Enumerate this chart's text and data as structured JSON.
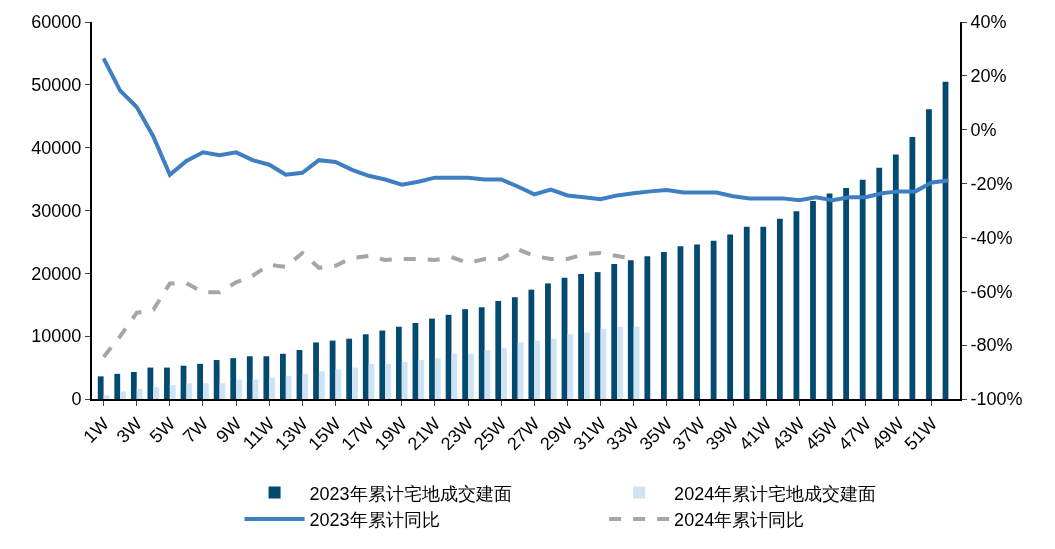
{
  "chart_data": {
    "type": "bar",
    "categories": [
      "1W",
      null,
      "3W",
      null,
      "5W",
      null,
      "7W",
      null,
      "9W",
      null,
      "11W",
      null,
      "13W",
      null,
      "15W",
      null,
      "17W",
      null,
      "19W",
      null,
      "21W",
      null,
      "23W",
      null,
      "25W",
      null,
      "27W",
      null,
      "29W",
      null,
      "31W",
      null,
      "33W",
      null,
      "35W",
      null,
      "37W",
      null,
      "39W",
      null,
      "41W",
      null,
      "43W",
      null,
      "45W",
      null,
      "47W",
      null,
      "49W",
      null,
      "51W",
      null
    ],
    "series": [
      {
        "name": "2023年累计宅地成交建面",
        "color": "#024a70",
        "values": [
          3600,
          4000,
          4300,
          5000,
          5000,
          5300,
          5600,
          6200,
          6500,
          6800,
          6800,
          7200,
          7800,
          9000,
          9300,
          9600,
          10300,
          10900,
          11500,
          12100,
          12800,
          13400,
          14300,
          14600,
          15600,
          16200,
          17400,
          18400,
          19300,
          19900,
          20200,
          21500,
          22100,
          22700,
          23400,
          24300,
          24600,
          25200,
          26200,
          27400,
          27400,
          28700,
          29900,
          31500,
          32700,
          33600,
          34900,
          36800,
          38900,
          41700,
          46100,
          50500
        ]
      },
      {
        "name": "2024年累计宅地成交建面",
        "color": "#cfe3f3",
        "values": [
          600,
          1200,
          1600,
          1900,
          2200,
          2500,
          2500,
          2500,
          3100,
          3100,
          3400,
          3700,
          4000,
          4400,
          4700,
          5000,
          5600,
          5600,
          5900,
          6200,
          6500,
          7200,
          7200,
          7800,
          8100,
          9000,
          9300,
          9600,
          10300,
          10600,
          11200,
          11500,
          11500,
          null,
          null,
          null,
          null,
          null,
          null,
          null,
          null,
          null,
          null,
          null,
          null,
          null,
          null,
          null,
          null,
          null,
          null,
          null
        ]
      },
      {
        "name": "2023年累计同比",
        "type": "line",
        "axis": "y2",
        "color": "#3e7fc1",
        "line_style": "solid",
        "values": [
          26.5,
          14.5,
          8.4,
          -2.5,
          -16.7,
          -11.6,
          -8.4,
          -9.5,
          -8.4,
          -11.3,
          -13,
          -16.7,
          -16,
          -11.3,
          -12,
          -14.9,
          -17.1,
          -18.5,
          -20.4,
          -19.3,
          -17.8,
          -17.8,
          -17.8,
          -18.5,
          -18.5,
          -21.1,
          -24,
          -22.2,
          -24.4,
          -25.1,
          -25.8,
          -24.4,
          -23.6,
          -22.9,
          -22.4,
          -23.3,
          -23.3,
          -23.3,
          -24.7,
          -25.5,
          -25.5,
          -25.5,
          -26.2,
          -25.1,
          -26.2,
          -25.1,
          -25.1,
          -23.6,
          -22.9,
          -22.9,
          -19.6,
          -18.9
        ]
      },
      {
        "name": "2024年累计同比",
        "type": "line",
        "axis": "y2",
        "color": "#a6a6a6",
        "line_style": "dashed",
        "values": [
          -84.4,
          -76.7,
          -68,
          -66.9,
          -57.1,
          -57,
          -60.4,
          -60.4,
          -56.7,
          -54.2,
          -50.2,
          -50.9,
          -45.8,
          -51.3,
          -50.5,
          -47.6,
          -46.9,
          -48.4,
          -48,
          -48,
          -48.4,
          -47.3,
          -49.5,
          -48,
          -48,
          -44.4,
          -46.9,
          -48,
          -48,
          -46.2,
          -45.8,
          -46.9,
          -48,
          null,
          null,
          null,
          null,
          null,
          null,
          null,
          null,
          null,
          null,
          null,
          null,
          null,
          null,
          null,
          null,
          null,
          null,
          null
        ]
      }
    ],
    "ylim": [
      0,
      60000
    ],
    "yticks": [
      0,
      10000,
      20000,
      30000,
      40000,
      50000,
      60000
    ],
    "y2lim": [
      -100,
      40
    ],
    "y2ticks": [
      {
        "value": -100,
        "label": "-100%"
      },
      {
        "value": -80,
        "label": "-80%"
      },
      {
        "value": -60,
        "label": "-60%"
      },
      {
        "value": -40,
        "label": "-40%"
      },
      {
        "value": -20,
        "label": "-20%"
      },
      {
        "value": 0,
        "label": "0%"
      },
      {
        "value": 20,
        "label": "20%"
      },
      {
        "value": 40,
        "label": "40%"
      }
    ],
    "legend": "bottom",
    "marker": "none"
  }
}
